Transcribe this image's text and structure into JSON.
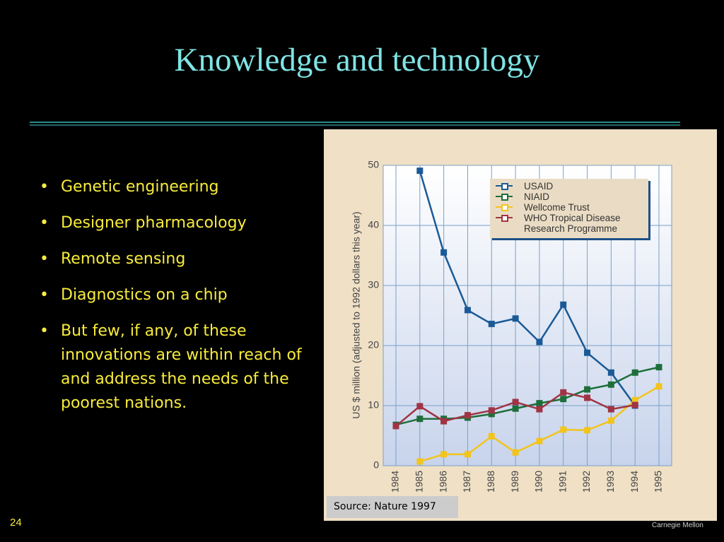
{
  "slide": {
    "title": "Knowledge and technology",
    "bullets": [
      "Genetic engineering",
      "Designer pharmacology",
      "Remote sensing",
      "Diagnostics on a chip",
      "But few, if any, of these innovations are within reach of and address the needs of the poorest nations."
    ],
    "source": "Source: Nature 1997",
    "page_number": "24",
    "logo": "Carnegie Mellon"
  },
  "chart_data": {
    "type": "line",
    "y_label": "US $ million (adjusted to 1992 dollars this year)",
    "categories": [
      "1984",
      "1985",
      "1986",
      "1987",
      "1988",
      "1989",
      "1990",
      "1991",
      "1992",
      "1993",
      "1994",
      "1995"
    ],
    "series": [
      {
        "name": "USAID",
        "color": "#1a5a96",
        "values": [
          null,
          49.1,
          35.5,
          25.9,
          23.6,
          24.5,
          20.6,
          26.8,
          18.8,
          15.5,
          10,
          null
        ]
      },
      {
        "name": "NIAID",
        "color": "#1e6e3a",
        "values": [
          6.8,
          7.8,
          7.8,
          8.0,
          8.6,
          9.5,
          10.4,
          11.1,
          12.7,
          13.5,
          15.5,
          16.4
        ]
      },
      {
        "name": "Wellcome Trust",
        "color": "#f2c41c",
        "values": [
          null,
          0.7,
          1.9,
          1.9,
          4.9,
          2.2,
          4.1,
          6.0,
          5.9,
          7.5,
          10.9,
          13.2
        ]
      },
      {
        "name": "WHO Tropical Disease Research Programme",
        "color": "#a03444",
        "values": [
          6.6,
          9.9,
          7.4,
          8.4,
          9.2,
          10.6,
          9.4,
          12.2,
          11.3,
          9.4,
          10.1,
          null
        ]
      }
    ],
    "ylim": [
      0,
      50
    ],
    "yticks": [
      0,
      10,
      20,
      30,
      40,
      50
    ],
    "grid": true
  }
}
